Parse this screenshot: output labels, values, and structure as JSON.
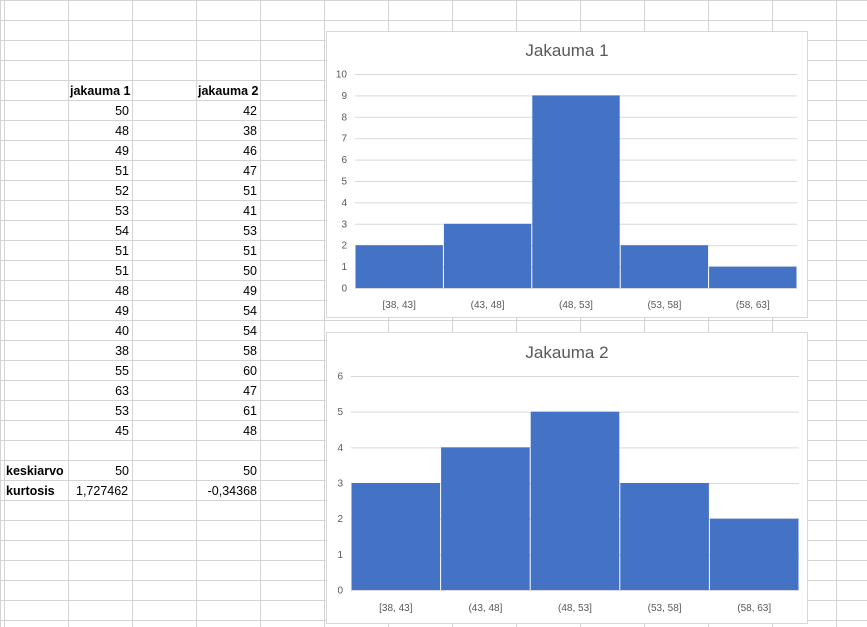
{
  "sheet": {
    "headers": [
      "jakauma 1",
      "jakauma 2"
    ],
    "jakauma1": [
      50,
      48,
      49,
      51,
      52,
      53,
      54,
      51,
      51,
      48,
      49,
      40,
      38,
      55,
      63,
      53,
      45
    ],
    "jakauma2": [
      42,
      38,
      46,
      47,
      51,
      41,
      53,
      51,
      50,
      49,
      54,
      54,
      58,
      60,
      47,
      61,
      48
    ],
    "stats": [
      {
        "label": "keskiarvo",
        "v1": "50",
        "v2": "50"
      },
      {
        "label": "kurtosis",
        "v1": "1,727462",
        "v2": "-0,34368"
      }
    ]
  },
  "chart_data": [
    {
      "type": "bar",
      "title": "Jakauma 1",
      "categories": [
        "[38, 43]",
        "(43, 48]",
        "(48, 53]",
        "(53, 58]",
        "(58, 63]"
      ],
      "values": [
        2,
        3,
        9,
        2,
        1
      ],
      "ylim": [
        0,
        10
      ],
      "yticks": [
        "0",
        "1",
        "2",
        "3",
        "4",
        "5",
        "6",
        "7",
        "8",
        "9",
        "10"
      ],
      "grid": true,
      "color": "#4472c4"
    },
    {
      "type": "bar",
      "title": "Jakauma 2",
      "categories": [
        "[38, 43]",
        "(43, 48]",
        "(48, 53]",
        "(53, 58]",
        "(58, 63]"
      ],
      "values": [
        3,
        4,
        5,
        3,
        2
      ],
      "ylim": [
        0,
        6
      ],
      "yticks": [
        "0",
        "1",
        "2",
        "3",
        "4",
        "5",
        "6"
      ],
      "grid": true,
      "color": "#4472c4"
    }
  ]
}
